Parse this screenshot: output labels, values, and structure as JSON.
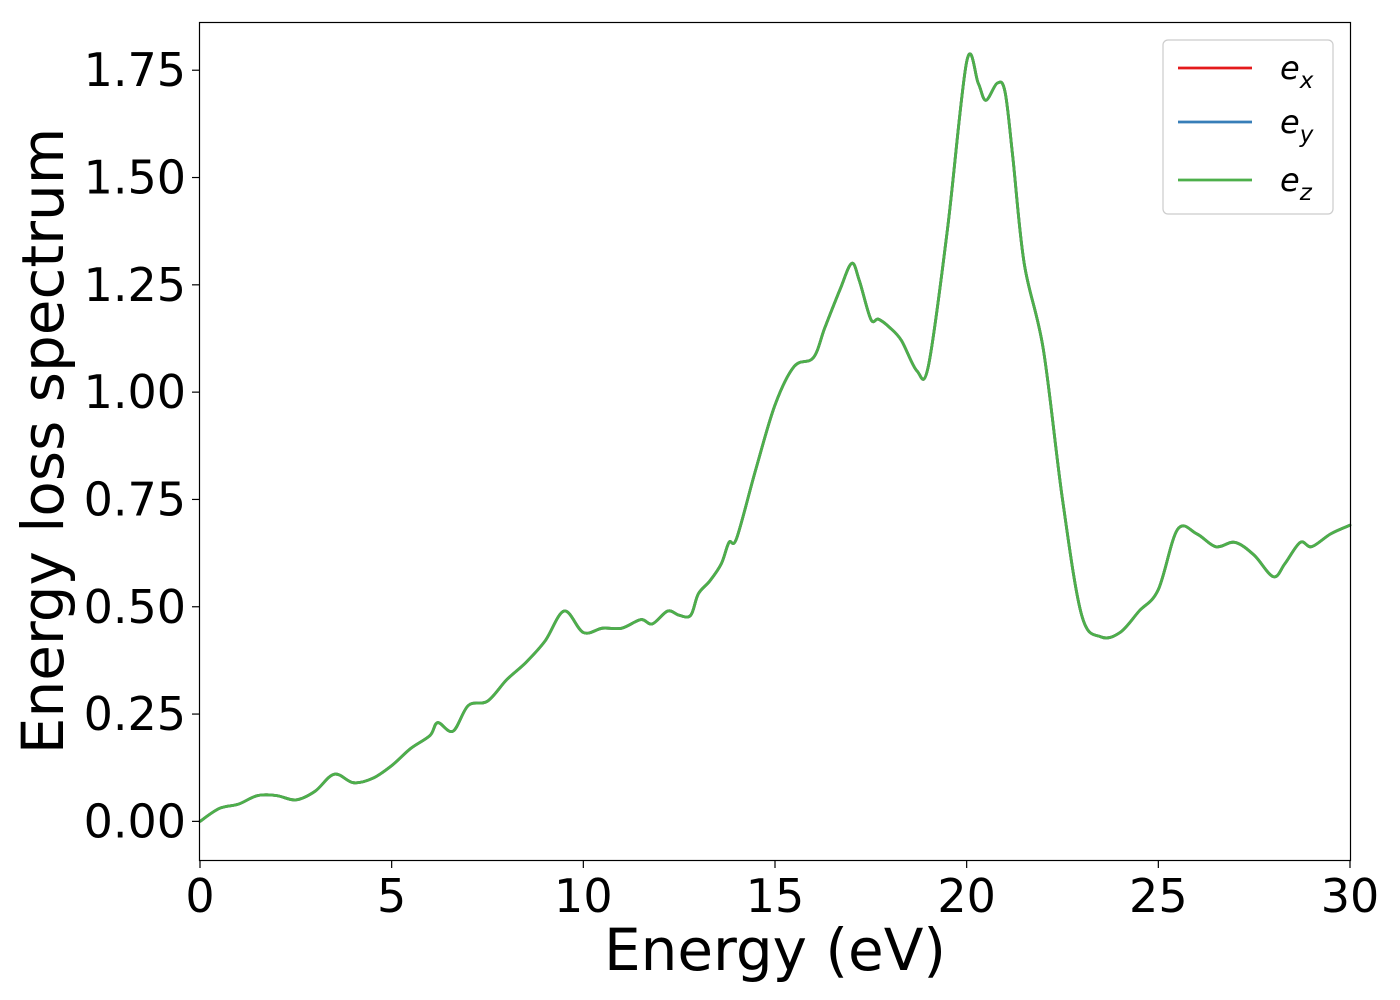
{
  "chart_data": {
    "type": "line",
    "title": "",
    "xlabel": "Energy (eV)",
    "ylabel": "Energy loss spectrum",
    "xlim": [
      0,
      30
    ],
    "ylim": [
      -0.09,
      1.86
    ],
    "xticks": [
      0,
      5,
      10,
      15,
      20,
      25,
      30
    ],
    "xtick_labels": [
      "0",
      "5",
      "10",
      "15",
      "20",
      "25",
      "30"
    ],
    "yticks": [
      0.0,
      0.25,
      0.5,
      0.75,
      1.0,
      1.25,
      1.5,
      1.75
    ],
    "ytick_labels": [
      "0.00",
      "0.25",
      "0.50",
      "0.75",
      "1.00",
      "1.25",
      "1.50",
      "1.75"
    ],
    "grid": false,
    "legend_position": "top-right",
    "x": [
      0,
      0.5,
      1.0,
      1.5,
      2.0,
      2.5,
      3.0,
      3.5,
      4.0,
      4.5,
      5.0,
      5.5,
      6.0,
      6.2,
      6.6,
      7.0,
      7.5,
      8.0,
      8.5,
      9.0,
      9.5,
      10.0,
      10.5,
      11.0,
      11.5,
      11.8,
      12.2,
      12.5,
      12.8,
      13.0,
      13.3,
      13.6,
      13.8,
      14.0,
      14.5,
      15.0,
      15.5,
      16.0,
      16.3,
      16.7,
      17.0,
      17.2,
      17.5,
      17.7,
      18.0,
      18.3,
      18.7,
      19.0,
      19.5,
      20.0,
      20.3,
      20.5,
      20.8,
      21.0,
      21.2,
      21.5,
      22.0,
      22.5,
      23.0,
      23.5,
      24.0,
      24.5,
      25.0,
      25.5,
      26.0,
      26.5,
      27.0,
      27.5,
      28.0,
      28.3,
      28.7,
      29.0,
      29.5,
      30.0
    ],
    "series": [
      {
        "name": "e_x",
        "label_base": "e",
        "label_sub": "x",
        "color": "#e41a1c",
        "values": [
          0.0,
          0.03,
          0.04,
          0.06,
          0.06,
          0.05,
          0.07,
          0.11,
          0.09,
          0.1,
          0.13,
          0.17,
          0.2,
          0.23,
          0.21,
          0.27,
          0.28,
          0.33,
          0.37,
          0.42,
          0.49,
          0.44,
          0.45,
          0.45,
          0.47,
          0.46,
          0.49,
          0.48,
          0.48,
          0.53,
          0.56,
          0.6,
          0.65,
          0.66,
          0.82,
          0.97,
          1.06,
          1.08,
          1.15,
          1.24,
          1.3,
          1.26,
          1.17,
          1.17,
          1.15,
          1.12,
          1.05,
          1.06,
          1.38,
          1.77,
          1.72,
          1.68,
          1.72,
          1.7,
          1.55,
          1.3,
          1.1,
          0.75,
          0.48,
          0.43,
          0.44,
          0.49,
          0.54,
          0.68,
          0.67,
          0.64,
          0.65,
          0.62,
          0.57,
          0.6,
          0.65,
          0.64,
          0.67,
          0.69
        ]
      },
      {
        "name": "e_y",
        "label_base": "e",
        "label_sub": "y",
        "color": "#377eb8",
        "values": [
          0.0,
          0.03,
          0.04,
          0.06,
          0.06,
          0.05,
          0.07,
          0.11,
          0.09,
          0.1,
          0.13,
          0.17,
          0.2,
          0.23,
          0.21,
          0.27,
          0.28,
          0.33,
          0.37,
          0.42,
          0.49,
          0.44,
          0.45,
          0.45,
          0.47,
          0.46,
          0.49,
          0.48,
          0.48,
          0.53,
          0.56,
          0.6,
          0.65,
          0.66,
          0.82,
          0.97,
          1.06,
          1.08,
          1.15,
          1.24,
          1.3,
          1.26,
          1.17,
          1.17,
          1.15,
          1.12,
          1.05,
          1.06,
          1.38,
          1.77,
          1.72,
          1.68,
          1.72,
          1.7,
          1.55,
          1.3,
          1.1,
          0.75,
          0.48,
          0.43,
          0.44,
          0.49,
          0.54,
          0.68,
          0.67,
          0.64,
          0.65,
          0.62,
          0.57,
          0.6,
          0.65,
          0.64,
          0.67,
          0.69
        ]
      },
      {
        "name": "e_z",
        "label_base": "e",
        "label_sub": "z",
        "color": "#4daf4a",
        "values": [
          0.0,
          0.03,
          0.04,
          0.06,
          0.06,
          0.05,
          0.07,
          0.11,
          0.09,
          0.1,
          0.13,
          0.17,
          0.2,
          0.23,
          0.21,
          0.27,
          0.28,
          0.33,
          0.37,
          0.42,
          0.49,
          0.44,
          0.45,
          0.45,
          0.47,
          0.46,
          0.49,
          0.48,
          0.48,
          0.53,
          0.56,
          0.6,
          0.65,
          0.66,
          0.82,
          0.97,
          1.06,
          1.08,
          1.15,
          1.24,
          1.3,
          1.26,
          1.17,
          1.17,
          1.15,
          1.12,
          1.05,
          1.06,
          1.38,
          1.77,
          1.72,
          1.68,
          1.72,
          1.7,
          1.55,
          1.3,
          1.1,
          0.75,
          0.48,
          0.43,
          0.44,
          0.49,
          0.54,
          0.68,
          0.67,
          0.64,
          0.65,
          0.62,
          0.57,
          0.6,
          0.65,
          0.64,
          0.67,
          0.69
        ]
      }
    ]
  }
}
